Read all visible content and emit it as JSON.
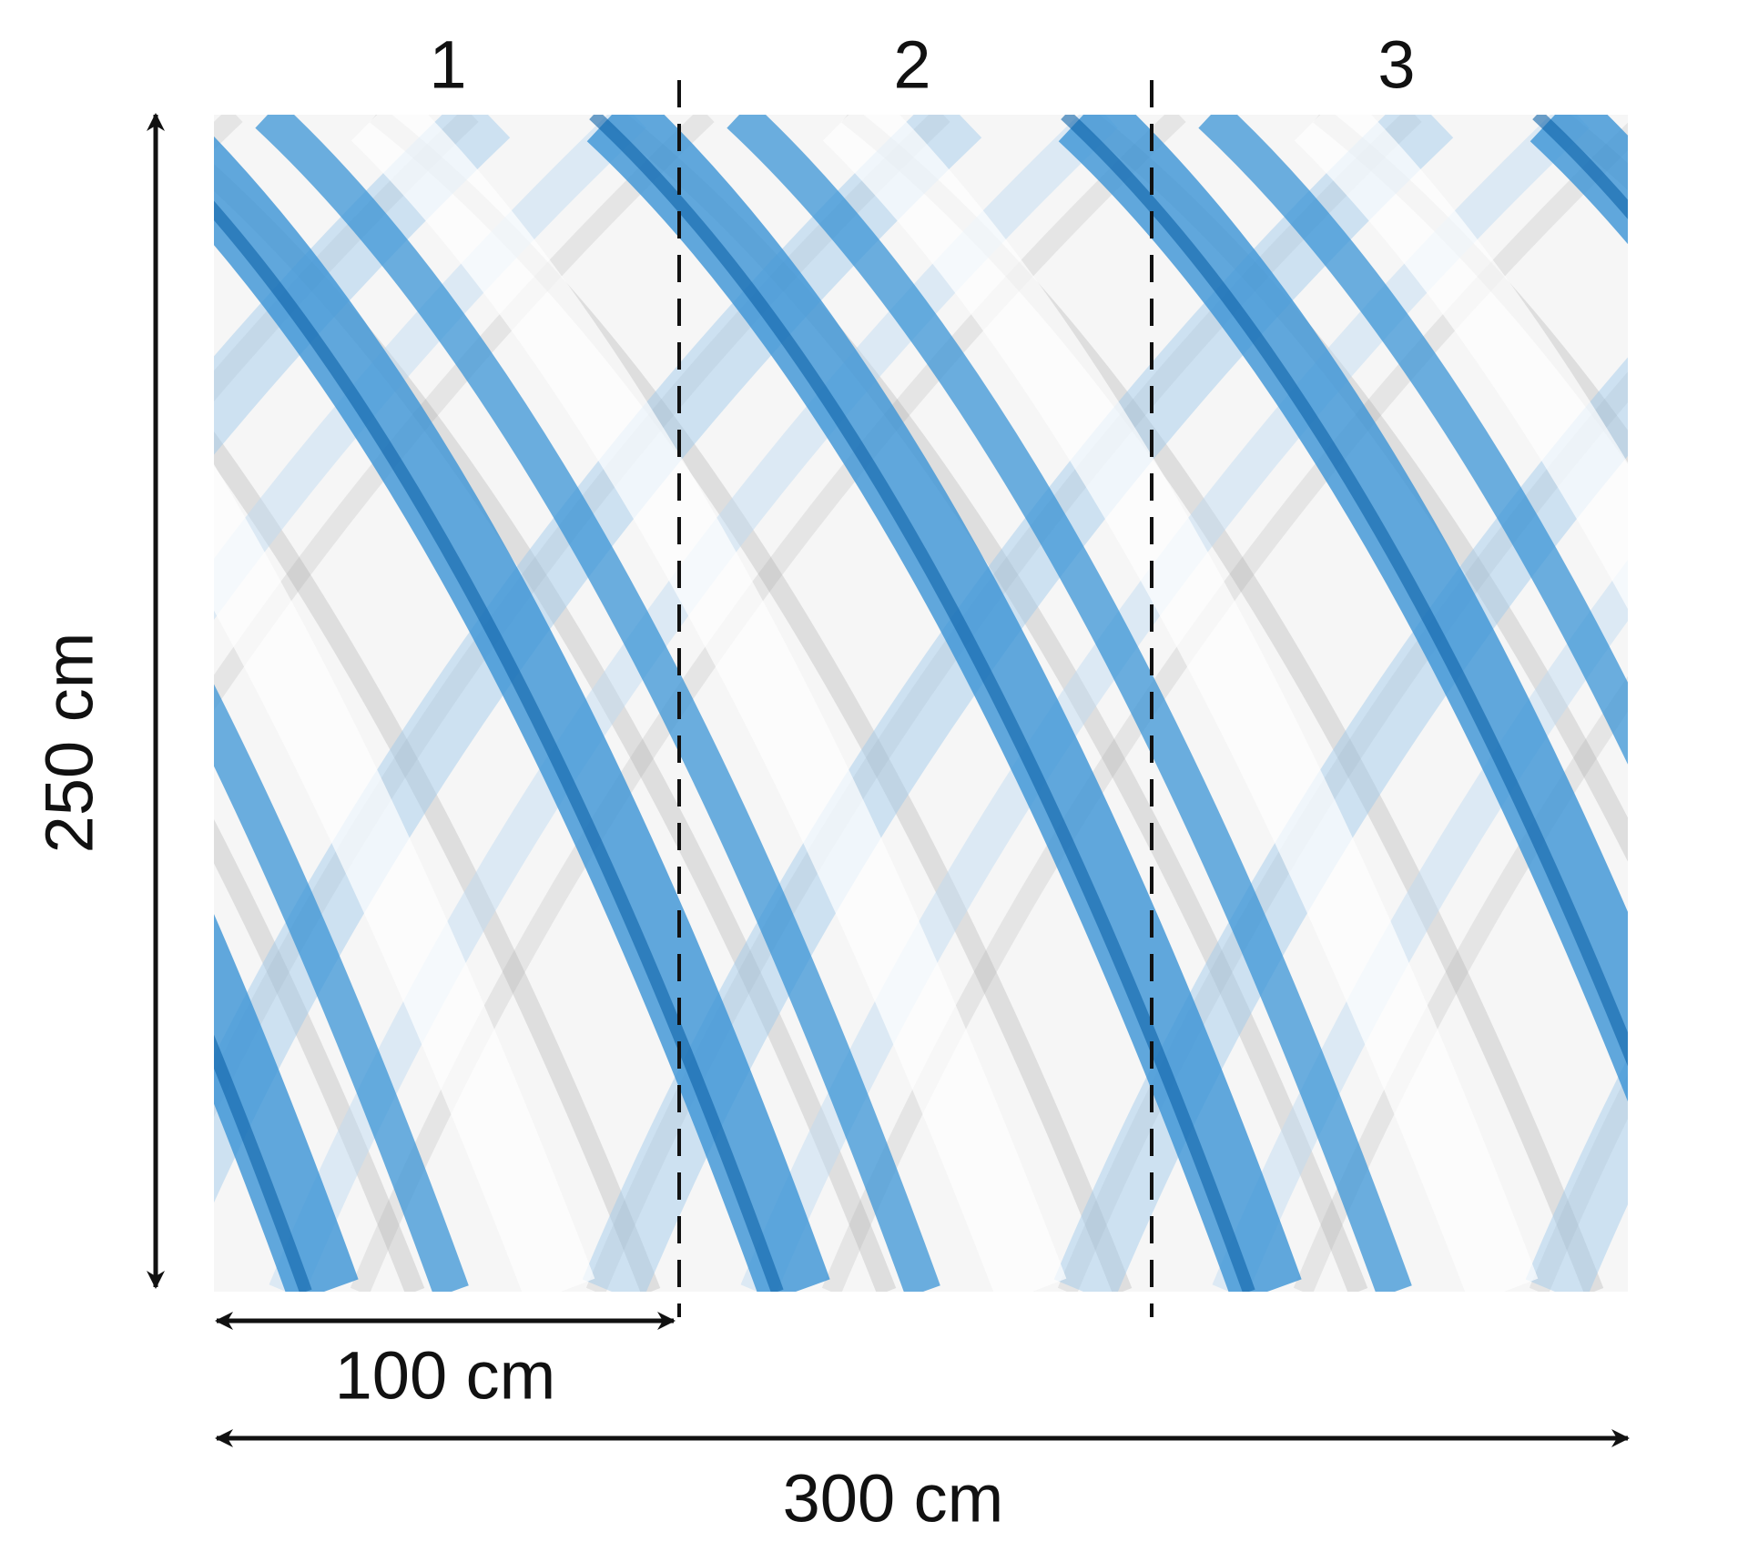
{
  "panels": [
    "1",
    "2",
    "3"
  ],
  "height_label": "250 cm",
  "panel_width_label": "100 cm",
  "total_width_label": "300 cm"
}
